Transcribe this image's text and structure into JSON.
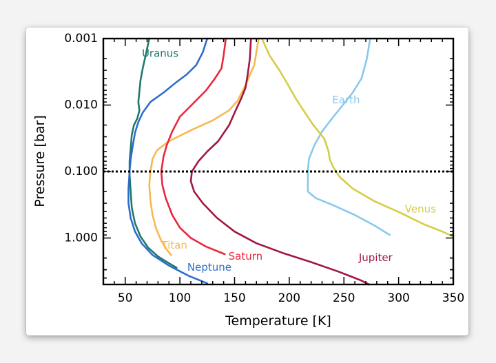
{
  "chart_data": {
    "type": "line",
    "title": "",
    "xlabel": "Temperature [K]",
    "ylabel": "Pressure [bar]",
    "xlim": [
      30,
      350
    ],
    "ylim": [
      0.001,
      5
    ],
    "y_scale": "log",
    "y_reversed": true,
    "x_ticks": [
      50,
      100,
      150,
      200,
      250,
      300,
      350
    ],
    "x_tick_labels": [
      "50",
      "100",
      "150",
      "200",
      "250",
      "300",
      "350"
    ],
    "y_ticks": [
      0.001,
      0.01,
      0.1,
      1
    ],
    "y_tick_labels": [
      "0.001",
      "0.010",
      "0.100",
      "1.000"
    ],
    "reference_line": {
      "y": 0.1,
      "style": "dotted"
    },
    "grid": false,
    "legend": "inline labels",
    "series": [
      {
        "name": "Uranus",
        "color": "#1f7a6b",
        "label_at": {
          "x": 82,
          "y": 0.0017
        },
        "points": [
          [
            72,
            0.001
          ],
          [
            69,
            0.0017
          ],
          [
            66,
            0.0028
          ],
          [
            64,
            0.0042
          ],
          [
            63,
            0.0062
          ],
          [
            62,
            0.009
          ],
          [
            63,
            0.012
          ],
          [
            61,
            0.016
          ],
          [
            58,
            0.02
          ],
          [
            56,
            0.028
          ],
          [
            55,
            0.045
          ],
          [
            54,
            0.07
          ],
          [
            54,
            0.11
          ],
          [
            55,
            0.2
          ],
          [
            56,
            0.35
          ],
          [
            59,
            0.6
          ],
          [
            64,
            0.95
          ],
          [
            71,
            1.4
          ],
          [
            80,
            1.9
          ],
          [
            90,
            2.4
          ],
          [
            97,
            2.8
          ]
        ]
      },
      {
        "name": "Neptune",
        "color": "#2e6dcc",
        "label_at": {
          "x": 127,
          "y": 2.8
        },
        "points": [
          [
            125,
            0.001
          ],
          [
            121,
            0.0016
          ],
          [
            115,
            0.0025
          ],
          [
            106,
            0.0035
          ],
          [
            97,
            0.0045
          ],
          [
            85,
            0.0065
          ],
          [
            73,
            0.009
          ],
          [
            66,
            0.013
          ],
          [
            62,
            0.018
          ],
          [
            59,
            0.026
          ],
          [
            57,
            0.04
          ],
          [
            55,
            0.065
          ],
          [
            54,
            0.1
          ],
          [
            53,
            0.18
          ],
          [
            53,
            0.3
          ],
          [
            55,
            0.5
          ],
          [
            59,
            0.8
          ],
          [
            65,
            1.2
          ],
          [
            75,
            1.8
          ],
          [
            90,
            2.6
          ],
          [
            108,
            3.7
          ],
          [
            125,
            4.8
          ]
        ]
      },
      {
        "name": "Titan",
        "color": "#f8b84e",
        "label_at": {
          "x": 95,
          "y": 1.3
        },
        "points": [
          [
            172,
            0.001
          ],
          [
            168,
            0.0025
          ],
          [
            160,
            0.005
          ],
          [
            153,
            0.0085
          ],
          [
            145,
            0.012
          ],
          [
            130,
            0.017
          ],
          [
            110,
            0.024
          ],
          [
            90,
            0.035
          ],
          [
            79,
            0.048
          ],
          [
            75,
            0.065
          ],
          [
            73,
            0.1
          ],
          [
            72,
            0.16
          ],
          [
            73,
            0.27
          ],
          [
            75,
            0.45
          ],
          [
            78,
            0.7
          ],
          [
            83,
            1.1
          ],
          [
            88,
            1.5
          ],
          [
            92,
            1.8
          ]
        ]
      },
      {
        "name": "Saturn",
        "color": "#e8283a",
        "label_at": {
          "x": 160,
          "y": 1.9
        },
        "points": [
          [
            142,
            0.001
          ],
          [
            140,
            0.0018
          ],
          [
            138,
            0.0028
          ],
          [
            132,
            0.004
          ],
          [
            124,
            0.006
          ],
          [
            112,
            0.0095
          ],
          [
            100,
            0.015
          ],
          [
            93,
            0.025
          ],
          [
            88,
            0.04
          ],
          [
            85,
            0.06
          ],
          [
            83,
            0.1
          ],
          [
            84,
            0.16
          ],
          [
            87,
            0.25
          ],
          [
            93,
            0.45
          ],
          [
            100,
            0.7
          ],
          [
            110,
            1.0
          ],
          [
            124,
            1.35
          ],
          [
            141,
            1.75
          ]
        ]
      },
      {
        "name": "Jupiter",
        "color": "#a2173d",
        "label_at": {
          "x": 279,
          "y": 2.0
        },
        "points": [
          [
            165,
            0.001
          ],
          [
            164,
            0.002
          ],
          [
            162,
            0.0035
          ],
          [
            160,
            0.0055
          ],
          [
            156,
            0.008
          ],
          [
            151,
            0.012
          ],
          [
            145,
            0.02
          ],
          [
            135,
            0.035
          ],
          [
            125,
            0.05
          ],
          [
            117,
            0.07
          ],
          [
            111,
            0.1
          ],
          [
            110,
            0.14
          ],
          [
            113,
            0.2
          ],
          [
            121,
            0.3
          ],
          [
            134,
            0.5
          ],
          [
            150,
            0.8
          ],
          [
            170,
            1.2
          ],
          [
            195,
            1.7
          ],
          [
            220,
            2.3
          ],
          [
            245,
            3.2
          ],
          [
            265,
            4.3
          ],
          [
            273,
            5.0
          ]
        ]
      },
      {
        "name": "Earth",
        "color": "#8ac8ec",
        "label_at": {
          "x": 252,
          "y": 0.0085
        },
        "points": [
          [
            274,
            0.001
          ],
          [
            271,
            0.002
          ],
          [
            266,
            0.004
          ],
          [
            258,
            0.0065
          ],
          [
            249,
            0.01
          ],
          [
            239,
            0.016
          ],
          [
            230,
            0.025
          ],
          [
            223,
            0.04
          ],
          [
            218,
            0.065
          ],
          [
            217,
            0.1
          ],
          [
            217,
            0.14
          ],
          [
            217,
            0.2
          ],
          [
            224,
            0.25
          ],
          [
            240,
            0.32
          ],
          [
            260,
            0.45
          ],
          [
            278,
            0.65
          ],
          [
            292,
            0.9
          ]
        ]
      },
      {
        "name": "Venus",
        "color": "#d4cd46",
        "label_at": {
          "x": 320,
          "y": 0.37
        },
        "points": [
          [
            175,
            0.001
          ],
          [
            182,
            0.0018
          ],
          [
            191,
            0.003
          ],
          [
            199,
            0.005
          ],
          [
            206,
            0.008
          ],
          [
            213,
            0.012
          ],
          [
            222,
            0.02
          ],
          [
            232,
            0.032
          ],
          [
            236,
            0.05
          ],
          [
            237,
            0.065
          ],
          [
            240,
            0.085
          ],
          [
            246,
            0.12
          ],
          [
            258,
            0.18
          ],
          [
            278,
            0.28
          ],
          [
            302,
            0.42
          ],
          [
            323,
            0.62
          ],
          [
            340,
            0.8
          ],
          [
            350,
            0.95
          ]
        ]
      }
    ]
  }
}
